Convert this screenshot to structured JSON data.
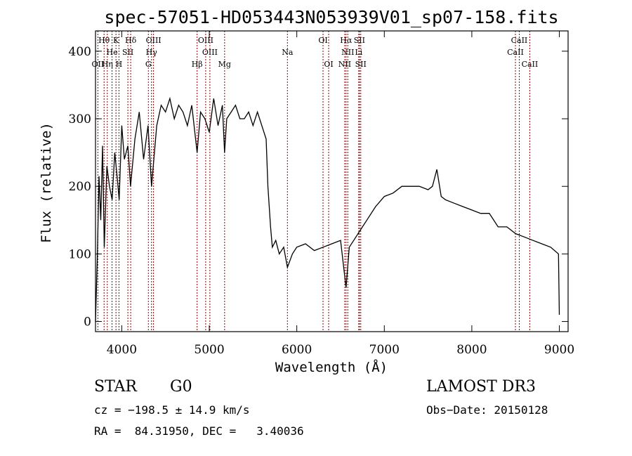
{
  "chart_data": {
    "type": "line",
    "title": "spec-57051-HD053443N053939V01_sp07-158.fits",
    "xlabel": "Wavelength (Å)",
    "ylabel": "Flux (relative)",
    "xlim": [
      3700,
      9100
    ],
    "ylim": [
      -15,
      430
    ],
    "xticks": [
      4000,
      5000,
      6000,
      7000,
      8000,
      9000
    ],
    "yticks": [
      0,
      100,
      200,
      300,
      400
    ],
    "grid": false,
    "line_color": "#000000",
    "marker_color": "#8b0000",
    "series": [
      {
        "x": [
          3700,
          3720,
          3740,
          3760,
          3780,
          3800,
          3830,
          3860,
          3890,
          3920,
          3950,
          3970,
          4000,
          4030,
          4070,
          4100,
          4150,
          4200,
          4250,
          4300,
          4340,
          4400,
          4450,
          4500,
          4550,
          4600,
          4650,
          4700,
          4750,
          4800,
          4861,
          4900,
          4950,
          5000,
          5050,
          5100,
          5150,
          5175,
          5200,
          5250,
          5300,
          5350,
          5400,
          5450,
          5500,
          5550,
          5600,
          5650,
          5670,
          5700,
          5720,
          5760,
          5800,
          5850,
          5893,
          5950,
          6000,
          6100,
          6200,
          6300,
          6400,
          6500,
          6563,
          6600,
          6650,
          6700,
          6800,
          6900,
          7000,
          7100,
          7200,
          7300,
          7400,
          7500,
          7550,
          7600,
          7650,
          7700,
          7800,
          7900,
          8000,
          8100,
          8200,
          8300,
          8400,
          8500,
          8600,
          8700,
          8800,
          8900,
          8990,
          9000
        ],
        "y": [
          0,
          90,
          215,
          150,
          260,
          110,
          230,
          200,
          180,
          250,
          210,
          180,
          290,
          240,
          260,
          200,
          270,
          310,
          240,
          290,
          200,
          290,
          320,
          310,
          330,
          300,
          320,
          310,
          290,
          320,
          250,
          310,
          300,
          280,
          330,
          290,
          320,
          250,
          300,
          310,
          320,
          300,
          300,
          310,
          290,
          310,
          290,
          270,
          200,
          140,
          110,
          120,
          100,
          110,
          80,
          100,
          110,
          115,
          105,
          110,
          115,
          120,
          50,
          110,
          120,
          130,
          150,
          170,
          185,
          190,
          200,
          200,
          200,
          195,
          200,
          225,
          185,
          180,
          175,
          170,
          165,
          160,
          160,
          140,
          140,
          130,
          125,
          120,
          115,
          110,
          100,
          10
        ]
      }
    ],
    "line_markers": [
      {
        "label": "Hθ",
        "w": 3798,
        "row": 1
      },
      {
        "label": "K",
        "w": 3934,
        "row": 1
      },
      {
        "label": "Hδ",
        "w": 4102,
        "row": 1
      },
      {
        "label": "OIII",
        "w": 4363,
        "row": 1
      },
      {
        "label": "OIII",
        "w": 4959,
        "row": 1
      },
      {
        "label": "OI",
        "w": 6300,
        "row": 1
      },
      {
        "label": "Hα",
        "w": 6563,
        "row": 1
      },
      {
        "label": "SII",
        "w": 6716,
        "row": 1
      },
      {
        "label": "CaII",
        "w": 8542,
        "row": 1
      },
      {
        "label": "He",
        "w": 3889,
        "row": 2
      },
      {
        "label": "SII",
        "w": 4070,
        "row": 2
      },
      {
        "label": "Hγ",
        "w": 4340,
        "row": 2
      },
      {
        "label": "OIII",
        "w": 5007,
        "row": 2
      },
      {
        "label": "Na",
        "w": 5893,
        "row": 2
      },
      {
        "label": "NII",
        "w": 6583,
        "row": 2
      },
      {
        "label": "Li",
        "w": 6708,
        "row": 2
      },
      {
        "label": "CaII",
        "w": 8498,
        "row": 2
      },
      {
        "label": "OII",
        "w": 3727,
        "row": 3
      },
      {
        "label": "Hη",
        "w": 3835,
        "row": 3
      },
      {
        "label": "H",
        "w": 3968,
        "row": 3
      },
      {
        "label": "G",
        "w": 4304,
        "row": 3
      },
      {
        "label": "Hβ",
        "w": 4861,
        "row": 3
      },
      {
        "label": "Mg",
        "w": 5175,
        "row": 3
      },
      {
        "label": "OI",
        "w": 6364,
        "row": 3
      },
      {
        "label": "NII",
        "w": 6548,
        "row": 3
      },
      {
        "label": "SII",
        "w": 6731,
        "row": 3
      },
      {
        "label": "CaII",
        "w": 8662,
        "row": 3
      }
    ]
  },
  "info": {
    "object_type": "STAR",
    "subclass": "G0",
    "cz": "cz = −198.5 ± 14.9 km/s",
    "coords": "RA =  84.31950, DEC =   3.40036",
    "survey": "LAMOST DR3",
    "obs_date": "Obs−Date: 20150128"
  }
}
